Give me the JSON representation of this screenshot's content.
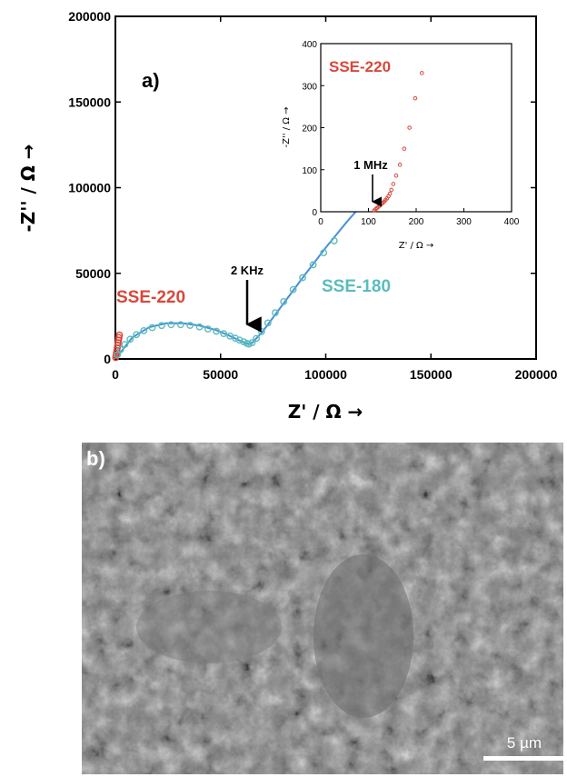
{
  "chart_data": {
    "type": "scatter",
    "panel_label": "a)",
    "xlabel": "Z' / Ω →",
    "ylabel": "-Z'' / Ω →",
    "xlim": [
      0,
      200000
    ],
    "ylim": [
      0,
      200000
    ],
    "x_ticks": [
      "0",
      "50000",
      "100000",
      "150000",
      "200000"
    ],
    "y_ticks": [
      "0",
      "50000",
      "100000",
      "150000",
      "200000"
    ],
    "colors": {
      "sse220": "#d9473a",
      "sse180": "#5bbcbc",
      "fit": "#4a8fd6"
    },
    "series": [
      {
        "name": "SSE-220",
        "x": [
          150,
          300,
          500,
          700,
          900,
          1100,
          1300,
          1500,
          1700,
          1900
        ],
        "y": [
          800,
          2000,
          3500,
          5000,
          6500,
          8000,
          9500,
          11000,
          12500,
          14000
        ]
      },
      {
        "name": "SSE-180",
        "x": [
          1000,
          2500,
          4500,
          7000,
          10000,
          13500,
          17500,
          22000,
          26500,
          31000,
          35500,
          40000,
          44000,
          48000,
          51500,
          54500,
          57000,
          59000,
          61000,
          62500,
          63500,
          65000,
          67000,
          69500,
          72500,
          76000,
          80000,
          84500,
          89000,
          94000,
          99000,
          104000
        ],
        "y": [
          2500,
          5500,
          8500,
          11500,
          14200,
          16500,
          18300,
          19500,
          20000,
          20000,
          19600,
          18700,
          17500,
          16200,
          14800,
          13400,
          12100,
          11000,
          10000,
          9100,
          8700,
          9500,
          12000,
          16000,
          21000,
          27000,
          33500,
          40500,
          47500,
          55000,
          62000,
          69000
        ]
      }
    ],
    "fit_line": {
      "x": [
        0,
        8000,
        16000,
        24000,
        32000,
        40000,
        48000,
        54000,
        58000,
        61000,
        63000,
        65000,
        70000,
        80000,
        90000,
        100000,
        110000,
        115000
      ],
      "y": [
        0,
        12500,
        18500,
        20800,
        20900,
        19500,
        16800,
        13700,
        11300,
        9700,
        8800,
        9300,
        16000,
        32500,
        49000,
        65000,
        80000,
        87000
      ]
    },
    "annotations": [
      {
        "text": "2 KHz",
        "x": 63000,
        "y": 8800
      }
    ],
    "series_labels": [
      "SSE-220",
      "SSE-180"
    ],
    "inset": {
      "xlabel": "Z' / Ω →",
      "ylabel": "-Z'' / Ω →",
      "xlim": [
        0,
        400
      ],
      "ylim": [
        0,
        400
      ],
      "x_ticks": [
        "0",
        "100",
        "200",
        "300",
        "400"
      ],
      "y_ticks": [
        "0",
        "100",
        "200",
        "300",
        "400"
      ],
      "series_label": "SSE-220",
      "annotation": {
        "text": "1 MHz",
        "x": 115,
        "y": 3
      },
      "points": {
        "x": [
          112,
          115,
          118,
          121,
          124,
          127,
          130,
          133,
          136,
          139,
          142,
          145,
          148,
          152,
          158,
          166,
          175,
          186,
          198,
          212
        ],
        "y": [
          3,
          6,
          9,
          12,
          15,
          18,
          21,
          24,
          28,
          32,
          37,
          43,
          52,
          66,
          86,
          112,
          150,
          200,
          270,
          330
        ]
      }
    }
  },
  "sem_image": {
    "panel_label": "b)",
    "scale_bar_label": "5 µm"
  }
}
